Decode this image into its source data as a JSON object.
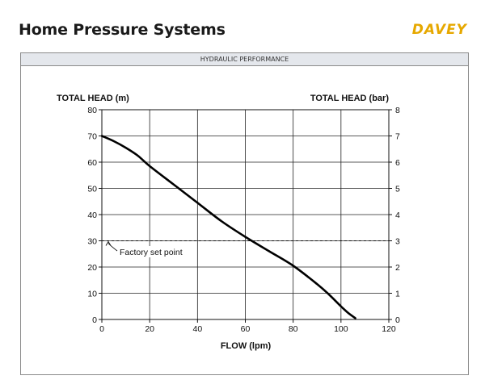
{
  "header": {
    "title": "Home Pressure Systems",
    "brand": "DAVEY"
  },
  "panel": {
    "title": "HYDRAULIC PERFORMANCE"
  },
  "chart_data": {
    "type": "line",
    "xlabel": "FLOW (lpm)",
    "ylabel_left": "TOTAL HEAD (m)",
    "ylabel_right": "TOTAL HEAD (bar)",
    "xlim": [
      0,
      120
    ],
    "ylim_left": [
      0,
      80
    ],
    "ylim_right": [
      0,
      8
    ],
    "x_ticks": [
      "0",
      "20",
      "40",
      "60",
      "80",
      "100",
      "120"
    ],
    "y_ticks_left": [
      "0",
      "10",
      "20",
      "30",
      "40",
      "50",
      "60",
      "70",
      "80"
    ],
    "y_ticks_right": [
      "0",
      "1",
      "2",
      "3",
      "4",
      "5",
      "6",
      "7",
      "8"
    ],
    "grid": true,
    "curve": [
      {
        "x": 0,
        "y": 70
      },
      {
        "x": 5,
        "y": 68
      },
      {
        "x": 10,
        "y": 65.5
      },
      {
        "x": 15,
        "y": 62.5
      },
      {
        "x": 20,
        "y": 58.5
      },
      {
        "x": 30,
        "y": 51.5
      },
      {
        "x": 40,
        "y": 44.5
      },
      {
        "x": 50,
        "y": 37.5
      },
      {
        "x": 60,
        "y": 31.5
      },
      {
        "x": 70,
        "y": 26
      },
      {
        "x": 80,
        "y": 20.5
      },
      {
        "x": 90,
        "y": 13.5
      },
      {
        "x": 95,
        "y": 9.5
      },
      {
        "x": 100,
        "y": 5
      },
      {
        "x": 103,
        "y": 2.5
      },
      {
        "x": 106,
        "y": 0.5
      }
    ],
    "reference_line": {
      "y": 30,
      "label": "Factory set point"
    }
  }
}
